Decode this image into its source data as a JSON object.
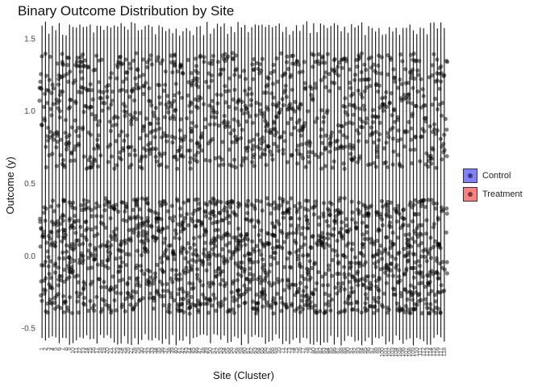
{
  "chart_data": {
    "type": "boxplot",
    "title": "Binary Outcome Distribution by Site",
    "xlabel": "Site (Cluster)",
    "ylabel": "Outcome (y)",
    "ylim": [
      -0.6,
      1.6
    ],
    "yticks": [
      -0.5,
      0.0,
      0.5,
      1.0,
      1.5
    ],
    "ytick_labels": [
      "-0.5",
      "0.0",
      "0.5",
      "1.0",
      "1.5"
    ],
    "grid": true,
    "n_sites": 118,
    "x_categories_range": [
      1,
      118
    ],
    "jitter_band_outcome_0": [
      -0.4,
      0.4
    ],
    "jitter_band_outcome_1": [
      0.6,
      1.4
    ],
    "whisker_range": [
      -0.62,
      1.62
    ],
    "legend": {
      "position": "right",
      "entries": [
        {
          "label": "Control",
          "color": "#8080ff"
        },
        {
          "label": "Treatment",
          "color": "#ff8080"
        }
      ]
    }
  }
}
